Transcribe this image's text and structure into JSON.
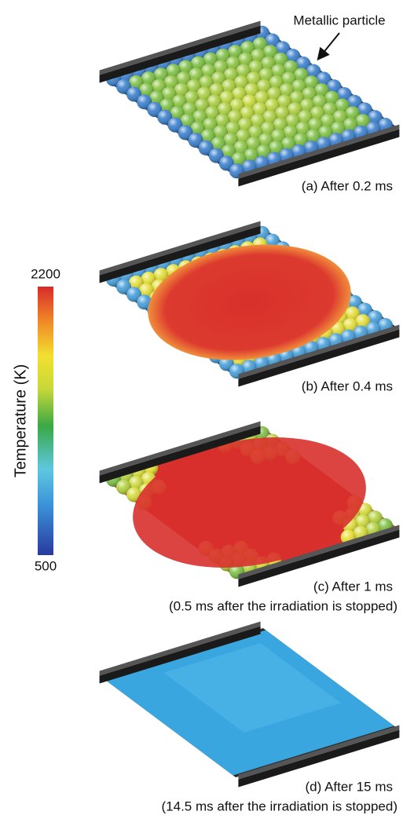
{
  "colorbar": {
    "label": "Temperature (K)",
    "lim": [
      500,
      2200
    ],
    "ticks": [
      500,
      2200
    ]
  },
  "annotation": "Metallic particle",
  "panels": [
    {
      "caption": "(a) After 0.2 ms"
    },
    {
      "caption": "(b) After 0.4 ms"
    },
    {
      "caption": "(c) After 1 ms",
      "note": "(0.5 ms after the irradiation is stopped)"
    },
    {
      "caption": "(d) After 15 ms",
      "note": "(14.5 ms after the irradiation is stopped)"
    }
  ]
}
